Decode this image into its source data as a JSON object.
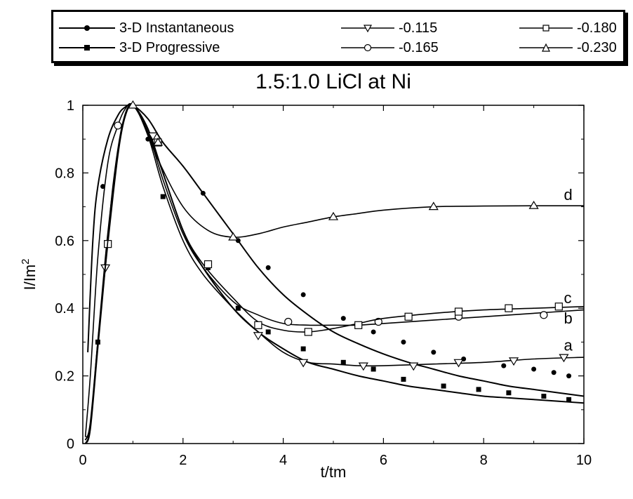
{
  "chart_data": {
    "type": "line",
    "title": "1.5:1.0 LiCl at Ni",
    "xlabel": "t/tm",
    "ylabel": "I/Im",
    "ylabel_sup": "2",
    "xlim": [
      0,
      10
    ],
    "ylim": [
      0,
      1
    ],
    "x_ticks": [
      "0",
      "2",
      "4",
      "6",
      "8",
      "10"
    ],
    "y_ticks": [
      "0",
      "0.2",
      "0.4",
      "0.6",
      "0.8",
      "1"
    ],
    "grid": false,
    "legend_position": "top",
    "series": [
      {
        "name": "3-D Instantaneous",
        "marker": "filled-circle",
        "x": [
          0.1,
          0.2,
          0.3,
          0.5,
          0.7,
          0.85,
          1.0,
          1.3,
          1.6,
          2.0,
          2.4,
          3.0,
          3.5,
          4.0,
          4.5,
          5.0,
          5.5,
          6.0,
          6.5,
          7.0,
          7.5,
          8.0,
          8.5,
          9.0,
          9.5,
          10.0
        ],
        "y": [
          0.27,
          0.6,
          0.76,
          0.9,
          0.97,
          0.995,
          1.0,
          0.96,
          0.89,
          0.82,
          0.74,
          0.62,
          0.52,
          0.44,
          0.38,
          0.33,
          0.295,
          0.265,
          0.24,
          0.22,
          0.2,
          0.185,
          0.17,
          0.16,
          0.15,
          0.14
        ],
        "markers_x": [
          0.4,
          0.72,
          1.3,
          2.4,
          3.1,
          3.7,
          4.4,
          5.2,
          5.8,
          6.4,
          7.0,
          7.6,
          8.4,
          9.0,
          9.4,
          9.7
        ],
        "markers_y": [
          0.76,
          0.94,
          0.9,
          0.74,
          0.6,
          0.52,
          0.44,
          0.37,
          0.33,
          0.3,
          0.27,
          0.25,
          0.23,
          0.22,
          0.21,
          0.2
        ]
      },
      {
        "name": "3-D Progressive",
        "marker": "filled-square",
        "x": [
          0.05,
          0.15,
          0.3,
          0.5,
          0.7,
          0.85,
          1.0,
          1.3,
          1.6,
          2.0,
          2.4,
          3.0,
          3.5,
          4.0,
          4.5,
          5.0,
          5.5,
          6.0,
          6.5,
          7.0,
          7.5,
          8.0,
          8.5,
          9.0,
          9.5,
          10.0
        ],
        "y": [
          0.01,
          0.06,
          0.3,
          0.62,
          0.86,
          0.97,
          1.0,
          0.93,
          0.8,
          0.63,
          0.52,
          0.4,
          0.33,
          0.28,
          0.24,
          0.22,
          0.2,
          0.185,
          0.17,
          0.16,
          0.15,
          0.14,
          0.135,
          0.13,
          0.125,
          0.12
        ],
        "markers_x": [
          0.3,
          1.6,
          2.5,
          3.1,
          3.7,
          4.4,
          5.2,
          5.8,
          6.4,
          7.2,
          7.9,
          8.5,
          9.2,
          9.7
        ],
        "markers_y": [
          0.3,
          0.73,
          0.52,
          0.4,
          0.33,
          0.28,
          0.24,
          0.22,
          0.19,
          0.17,
          0.16,
          0.15,
          0.14,
          0.13
        ]
      },
      {
        "name": "-0.115",
        "marker": "open-down-triangle",
        "x": [
          0.05,
          0.15,
          0.3,
          0.45,
          0.6,
          0.8,
          1.0,
          1.3,
          1.6,
          2.0,
          2.4,
          3.0,
          3.5,
          4.0,
          4.5,
          5.0,
          5.5,
          6.0,
          7.0,
          8.0,
          9.0,
          10.0
        ],
        "y": [
          0.0,
          0.04,
          0.28,
          0.52,
          0.76,
          0.95,
          1.0,
          0.91,
          0.76,
          0.6,
          0.5,
          0.4,
          0.33,
          0.27,
          0.24,
          0.235,
          0.23,
          0.23,
          0.235,
          0.24,
          0.25,
          0.255
        ],
        "markers_x": [
          0.45,
          1.4,
          3.5,
          4.4,
          5.6,
          6.6,
          7.5,
          8.6,
          9.6
        ],
        "markers_y": [
          0.52,
          0.91,
          0.32,
          0.24,
          0.23,
          0.23,
          0.24,
          0.245,
          0.255
        ]
      },
      {
        "name": "-0.165",
        "marker": "open-circle",
        "x": [
          0.05,
          0.15,
          0.3,
          0.5,
          0.7,
          0.85,
          1.0,
          1.3,
          1.6,
          2.0,
          2.4,
          3.0,
          3.5,
          4.0,
          4.5,
          5.0,
          5.5,
          6.0,
          7.0,
          8.0,
          9.0,
          10.0
        ],
        "y": [
          0.02,
          0.2,
          0.55,
          0.83,
          0.94,
          0.99,
          1.0,
          0.92,
          0.78,
          0.62,
          0.52,
          0.42,
          0.38,
          0.355,
          0.35,
          0.35,
          0.35,
          0.355,
          0.365,
          0.375,
          0.385,
          0.395
        ],
        "markers_x": [
          0.7,
          4.1,
          5.9,
          7.5,
          9.2
        ],
        "markers_y": [
          0.94,
          0.36,
          0.36,
          0.375,
          0.38
        ]
      },
      {
        "name": "-0.180",
        "marker": "open-square",
        "x": [
          0.05,
          0.15,
          0.3,
          0.5,
          0.7,
          0.85,
          1.0,
          1.3,
          1.6,
          2.0,
          2.4,
          3.0,
          3.5,
          4.0,
          4.5,
          5.0,
          5.5,
          6.0,
          7.0,
          8.0,
          9.0,
          10.0
        ],
        "y": [
          0.0,
          0.05,
          0.3,
          0.59,
          0.85,
          0.97,
          1.0,
          0.92,
          0.8,
          0.63,
          0.53,
          0.43,
          0.36,
          0.335,
          0.33,
          0.34,
          0.355,
          0.37,
          0.385,
          0.395,
          0.4,
          0.405
        ],
        "markers_x": [
          0.5,
          1.5,
          2.5,
          3.5,
          4.5,
          5.5,
          6.5,
          7.5,
          8.5,
          9.5
        ],
        "markers_y": [
          0.59,
          0.89,
          0.53,
          0.35,
          0.33,
          0.35,
          0.375,
          0.39,
          0.4,
          0.405
        ]
      },
      {
        "name": "-0.230",
        "marker": "open-up-triangle",
        "x": [
          0.05,
          0.15,
          0.3,
          0.5,
          0.7,
          0.85,
          1.0,
          1.2,
          1.5,
          2.0,
          2.5,
          3.0,
          3.5,
          4.0,
          4.5,
          5.0,
          5.5,
          6.0,
          7.0,
          8.0,
          9.0,
          10.0
        ],
        "y": [
          0.02,
          0.05,
          0.3,
          0.6,
          0.86,
          0.97,
          1.0,
          0.95,
          0.84,
          0.7,
          0.63,
          0.61,
          0.62,
          0.64,
          0.655,
          0.67,
          0.68,
          0.69,
          0.7,
          0.702,
          0.703,
          0.703
        ],
        "markers_x": [
          1.0,
          1.5,
          3.0,
          5.0,
          7.0,
          9.0
        ],
        "markers_y": [
          1.0,
          0.89,
          0.61,
          0.67,
          0.7,
          0.703
        ]
      }
    ],
    "curve_labels": [
      {
        "text": "d",
        "x": 9.6,
        "y": 0.72
      },
      {
        "text": "c",
        "x": 9.6,
        "y": 0.415
      },
      {
        "text": "b",
        "x": 9.6,
        "y": 0.355
      },
      {
        "text": "a",
        "x": 9.6,
        "y": 0.275
      }
    ]
  }
}
